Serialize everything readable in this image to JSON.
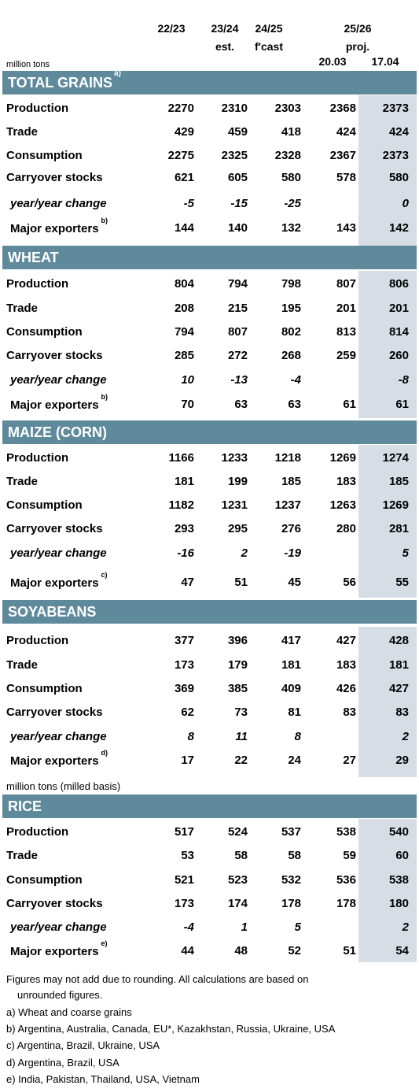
{
  "header": {
    "col1": "22/23",
    "col2": "23/24",
    "col2_sub": "est.",
    "col3": "24/25",
    "col3_sub": "f'cast",
    "proj_year": "25/26",
    "proj_label": "proj.",
    "date1": "20.03",
    "date2": "17.04",
    "units": "million tons",
    "units_rice": "million tons (milled basis)"
  },
  "labels": {
    "production": "Production",
    "trade": "Trade",
    "consumption": "Consumption",
    "carryover": "Carryover stocks",
    "yoy": "year/year change",
    "major": "Major exporters"
  },
  "sections": [
    {
      "title": "TOTAL GRAINS",
      "title_note": "a)",
      "exporters_note": "b)",
      "rows": [
        [
          "2270",
          "2310",
          "2303",
          "2368",
          "2373"
        ],
        [
          "429",
          "459",
          "418",
          "424",
          "424"
        ],
        [
          "2275",
          "2325",
          "2328",
          "2367",
          "2373"
        ],
        [
          "621",
          "605",
          "580",
          "578",
          "580"
        ],
        [
          "-5",
          "-15",
          "-25",
          "",
          "0"
        ],
        [
          "144",
          "140",
          "132",
          "143",
          "142"
        ]
      ]
    },
    {
      "title": "WHEAT",
      "title_note": "",
      "exporters_note": "b)",
      "rows": [
        [
          "804",
          "794",
          "798",
          "807",
          "806"
        ],
        [
          "208",
          "215",
          "195",
          "201",
          "201"
        ],
        [
          "794",
          "807",
          "802",
          "813",
          "814"
        ],
        [
          "285",
          "272",
          "268",
          "259",
          "260"
        ],
        [
          "10",
          "-13",
          "-4",
          "",
          "-8"
        ],
        [
          "70",
          "63",
          "63",
          "61",
          "61"
        ]
      ]
    },
    {
      "title": "MAIZE (CORN)",
      "title_note": "",
      "exporters_note": "c)",
      "rows": [
        [
          "1166",
          "1233",
          "1218",
          "1269",
          "1274"
        ],
        [
          "181",
          "199",
          "185",
          "183",
          "185"
        ],
        [
          "1182",
          "1231",
          "1237",
          "1263",
          "1269"
        ],
        [
          "293",
          "295",
          "276",
          "280",
          "281"
        ],
        [
          "-16",
          "2",
          "-19",
          "",
          "5"
        ],
        [
          "47",
          "51",
          "45",
          "56",
          "55"
        ]
      ]
    },
    {
      "title": "SOYABEANS",
      "title_note": "",
      "exporters_note": "d)",
      "rows": [
        [
          "377",
          "396",
          "417",
          "427",
          "428"
        ],
        [
          "173",
          "179",
          "181",
          "183",
          "181"
        ],
        [
          "369",
          "385",
          "409",
          "426",
          "427"
        ],
        [
          "62",
          "73",
          "81",
          "83",
          "83"
        ],
        [
          "8",
          "11",
          "8",
          "",
          "2"
        ],
        [
          "17",
          "22",
          "24",
          "27",
          "29"
        ]
      ]
    },
    {
      "title": "RICE",
      "title_note": "",
      "exporters_note": "e)",
      "rows": [
        [
          "517",
          "524",
          "537",
          "538",
          "540"
        ],
        [
          "53",
          "58",
          "58",
          "59",
          "60"
        ],
        [
          "521",
          "523",
          "532",
          "536",
          "538"
        ],
        [
          "173",
          "174",
          "178",
          "178",
          "180"
        ],
        [
          "-4",
          "1",
          "5",
          "",
          "2"
        ],
        [
          "44",
          "48",
          "52",
          "51",
          "54"
        ]
      ]
    }
  ],
  "footnotes": {
    "rounding": "Figures may not add due to rounding. All calculations are based on",
    "rounding2": "unrounded figures.",
    "a": "a) Wheat and coarse grains",
    "b": "b) Argentina, Australia, Canada, EU*, Kazakhstan, Russia, Ukraine, USA",
    "c": "c) Argentina, Brazil, Ukraine, USA",
    "d": "d) Argentina, Brazil, USA",
    "e": "e) India, Pakistan, Thailand, USA, Vietnam"
  }
}
